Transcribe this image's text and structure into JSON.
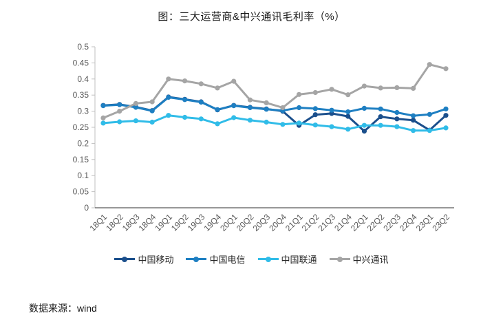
{
  "page": {
    "title": "图：三大运营商&中兴通讯毛利率（%）",
    "source": "数据来源：wind"
  },
  "chart_data": {
    "type": "line",
    "title": "图：三大运营商&中兴通讯毛利率（%）",
    "categories": [
      "18Q1",
      "18Q2",
      "18Q3",
      "18Q4",
      "19Q1",
      "19Q2",
      "19Q3",
      "19Q4",
      "20Q1",
      "20Q2",
      "20Q3",
      "20Q4",
      "21Q1",
      "21Q2",
      "21Q3",
      "21Q4",
      "22Q1",
      "22Q2",
      "22Q3",
      "22Q4",
      "23Q1",
      "23Q2"
    ],
    "series": [
      {
        "name": "中国移动",
        "slug": "china-mobile",
        "color": "#1B4F8C",
        "values": [
          0.318,
          0.321,
          0.313,
          0.302,
          0.344,
          0.337,
          0.329,
          0.304,
          0.318,
          0.312,
          0.307,
          0.3,
          0.256,
          0.289,
          0.293,
          0.284,
          0.238,
          0.283,
          0.276,
          0.272,
          0.241,
          0.287
        ]
      },
      {
        "name": "中国电信",
        "slug": "china-telecom",
        "color": "#1E7FC2",
        "values": [
          0.317,
          0.32,
          0.312,
          0.301,
          0.343,
          0.336,
          0.328,
          0.305,
          0.317,
          0.311,
          0.306,
          0.302,
          0.311,
          0.308,
          0.303,
          0.298,
          0.309,
          0.307,
          0.296,
          0.286,
          0.29,
          0.307
        ]
      },
      {
        "name": "中国联通",
        "slug": "china-unicom",
        "color": "#30BCE8",
        "values": [
          0.263,
          0.267,
          0.27,
          0.266,
          0.287,
          0.281,
          0.276,
          0.261,
          0.28,
          0.272,
          0.266,
          0.259,
          0.263,
          0.257,
          0.252,
          0.244,
          0.256,
          0.256,
          0.252,
          0.24,
          0.24,
          0.248
        ]
      },
      {
        "name": "中兴通讯",
        "slug": "zte",
        "color": "#A5A5A5",
        "values": [
          0.279,
          0.3,
          0.324,
          0.329,
          0.4,
          0.394,
          0.385,
          0.372,
          0.393,
          0.335,
          0.326,
          0.311,
          0.352,
          0.358,
          0.368,
          0.351,
          0.378,
          0.372,
          0.373,
          0.371,
          0.445,
          0.432
        ]
      }
    ],
    "ylim": [
      0,
      0.5
    ],
    "ytick_labels": [
      "0",
      "0.05",
      "0.1",
      "0.15",
      "0.2",
      "0.25",
      "0.3",
      "0.35",
      "0.4",
      "0.45",
      "0.5"
    ],
    "grid": false,
    "legend_position": "bottom",
    "marker": "circle",
    "axis_color": "#BFBFBF",
    "x_axis_color": "#595959",
    "tick_text_color": "#595959"
  }
}
